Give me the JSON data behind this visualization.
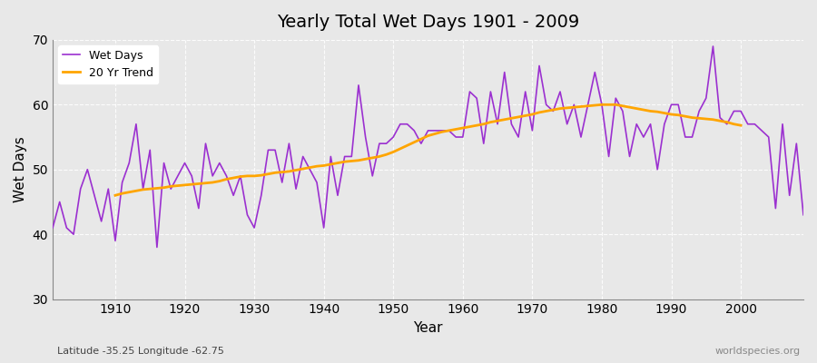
{
  "title": "Yearly Total Wet Days 1901 - 2009",
  "xlabel": "Year",
  "ylabel": "Wet Days",
  "subtitle": "Latitude -35.25 Longitude -62.75",
  "watermark": "worldspecies.org",
  "ylim": [
    30,
    70
  ],
  "yticks": [
    30,
    40,
    50,
    60,
    70
  ],
  "line_color": "#9B30D0",
  "trend_color": "#FFA500",
  "bg_color": "#E8E8E8",
  "years": [
    1901,
    1902,
    1903,
    1904,
    1905,
    1906,
    1907,
    1908,
    1909,
    1910,
    1911,
    1912,
    1913,
    1914,
    1915,
    1916,
    1917,
    1918,
    1919,
    1920,
    1921,
    1922,
    1923,
    1924,
    1925,
    1926,
    1927,
    1928,
    1929,
    1930,
    1931,
    1932,
    1933,
    1934,
    1935,
    1936,
    1937,
    1938,
    1939,
    1940,
    1941,
    1942,
    1943,
    1944,
    1945,
    1946,
    1947,
    1948,
    1949,
    1950,
    1951,
    1952,
    1953,
    1954,
    1955,
    1956,
    1957,
    1958,
    1959,
    1960,
    1961,
    1962,
    1963,
    1964,
    1965,
    1966,
    1967,
    1968,
    1969,
    1970,
    1971,
    1972,
    1973,
    1974,
    1975,
    1976,
    1977,
    1978,
    1979,
    1980,
    1981,
    1982,
    1983,
    1984,
    1985,
    1986,
    1987,
    1988,
    1989,
    1990,
    1991,
    1992,
    1993,
    1994,
    1995,
    1996,
    1997,
    1998,
    1999,
    2000,
    2001,
    2002,
    2003,
    2004,
    2005,
    2006,
    2007,
    2008,
    2009
  ],
  "wet_days": [
    41,
    45,
    41,
    40,
    47,
    50,
    46,
    42,
    47,
    39,
    48,
    51,
    57,
    47,
    53,
    38,
    51,
    47,
    49,
    51,
    49,
    44,
    54,
    49,
    51,
    49,
    46,
    49,
    43,
    41,
    46,
    53,
    53,
    48,
    54,
    47,
    52,
    50,
    48,
    41,
    52,
    46,
    52,
    52,
    63,
    55,
    49,
    54,
    54,
    55,
    57,
    57,
    56,
    54,
    56,
    56,
    56,
    56,
    55,
    55,
    62,
    61,
    54,
    62,
    57,
    65,
    57,
    55,
    62,
    56,
    66,
    60,
    59,
    62,
    57,
    60,
    55,
    60,
    65,
    60,
    52,
    61,
    59,
    52,
    57,
    55,
    57,
    50,
    57,
    60,
    60,
    55,
    55,
    59,
    61,
    69,
    58,
    57,
    59,
    59,
    57,
    57,
    56,
    55,
    44,
    57,
    46,
    54,
    43
  ],
  "trend_years": [
    1910,
    1911,
    1912,
    1913,
    1914,
    1915,
    1916,
    1917,
    1918,
    1919,
    1920,
    1921,
    1922,
    1923,
    1924,
    1925,
    1926,
    1927,
    1928,
    1929,
    1930,
    1931,
    1932,
    1933,
    1934,
    1935,
    1936,
    1937,
    1938,
    1939,
    1940,
    1941,
    1942,
    1943,
    1944,
    1945,
    1946,
    1947,
    1948,
    1949,
    1950,
    1951,
    1952,
    1953,
    1954,
    1955,
    1956,
    1957,
    1958,
    1959,
    1960,
    1961,
    1962,
    1963,
    1964,
    1965,
    1966,
    1967,
    1968,
    1969,
    1970,
    1971,
    1972,
    1973,
    1974,
    1975,
    1976,
    1977,
    1978,
    1979,
    1980,
    1981,
    1982,
    1983,
    1984,
    1985,
    1986,
    1987,
    1988,
    1989,
    1990,
    1991,
    1992,
    1993,
    1994,
    1995,
    1996,
    1997,
    1998,
    1999,
    2000
  ],
  "trend_values": [
    46.0,
    46.3,
    46.5,
    46.7,
    46.9,
    47.0,
    47.1,
    47.2,
    47.4,
    47.5,
    47.6,
    47.7,
    47.8,
    47.9,
    48.0,
    48.2,
    48.5,
    48.7,
    48.9,
    49.0,
    49.0,
    49.1,
    49.3,
    49.5,
    49.6,
    49.7,
    49.9,
    50.1,
    50.3,
    50.5,
    50.6,
    50.8,
    51.0,
    51.2,
    51.3,
    51.4,
    51.6,
    51.8,
    52.0,
    52.3,
    52.7,
    53.2,
    53.7,
    54.2,
    54.7,
    55.2,
    55.5,
    55.8,
    56.0,
    56.2,
    56.4,
    56.6,
    56.8,
    57.0,
    57.3,
    57.5,
    57.7,
    57.9,
    58.1,
    58.3,
    58.5,
    58.8,
    59.0,
    59.2,
    59.4,
    59.5,
    59.6,
    59.7,
    59.8,
    59.9,
    60.0,
    60.0,
    60.0,
    59.8,
    59.6,
    59.4,
    59.2,
    59.0,
    58.9,
    58.7,
    58.5,
    58.4,
    58.2,
    58.0,
    57.9,
    57.8,
    57.7,
    57.5,
    57.3,
    57.0,
    56.8
  ]
}
